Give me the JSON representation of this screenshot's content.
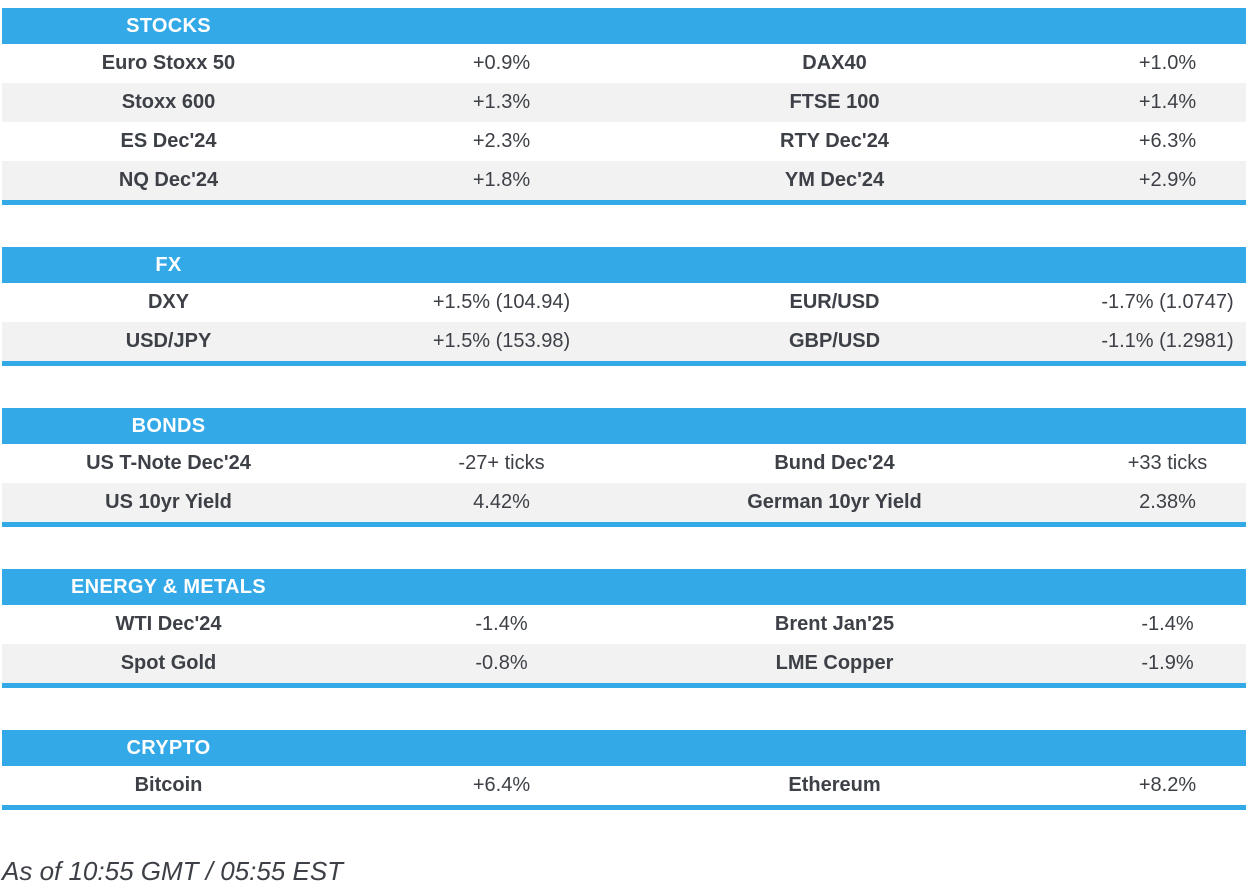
{
  "colors": {
    "accent_blue": "#33a9e8",
    "row_stripe": "#f2f2f2",
    "text": "#3d4046",
    "header_text": "#ffffff"
  },
  "sections": [
    {
      "title": "STOCKS",
      "rows": [
        {
          "l_label": "Euro Stoxx 50",
          "l_value": "+0.9%",
          "r_label": "DAX40",
          "r_value": "+1.0%"
        },
        {
          "l_label": "Stoxx 600",
          "l_value": "+1.3%",
          "r_label": "FTSE 100",
          "r_value": "+1.4%"
        },
        {
          "l_label": "ES Dec'24",
          "l_value": "+2.3%",
          "r_label": "RTY Dec'24",
          "r_value": "+6.3%"
        },
        {
          "l_label": "NQ Dec'24",
          "l_value": "+1.8%",
          "r_label": "YM Dec'24",
          "r_value": "+2.9%"
        }
      ]
    },
    {
      "title": "FX",
      "rows": [
        {
          "l_label": "DXY",
          "l_value": "+1.5% (104.94)",
          "r_label": "EUR/USD",
          "r_value": "-1.7% (1.0747)"
        },
        {
          "l_label": "USD/JPY",
          "l_value": "+1.5% (153.98)",
          "r_label": "GBP/USD",
          "r_value": "-1.1% (1.2981)"
        }
      ]
    },
    {
      "title": "BONDS",
      "rows": [
        {
          "l_label": "US T-Note Dec'24",
          "l_value": "-27+ ticks",
          "r_label": "Bund Dec'24",
          "r_value": "+33 ticks"
        },
        {
          "l_label": "US 10yr Yield",
          "l_value": "4.42%",
          "r_label": "German 10yr Yield",
          "r_value": "2.38%"
        }
      ]
    },
    {
      "title": "ENERGY & METALS",
      "rows": [
        {
          "l_label": "WTI Dec'24",
          "l_value": "-1.4%",
          "r_label": "Brent Jan'25",
          "r_value": "-1.4%"
        },
        {
          "l_label": "Spot Gold",
          "l_value": "-0.8%",
          "r_label": "LME Copper",
          "r_value": "-1.9%"
        }
      ]
    },
    {
      "title": "CRYPTO",
      "rows": [
        {
          "l_label": "Bitcoin",
          "l_value": "+6.4%",
          "r_label": "Ethereum",
          "r_value": "+8.2%"
        }
      ]
    }
  ],
  "footer": {
    "as_of": "As of 10:55 GMT / 05:55 EST"
  }
}
